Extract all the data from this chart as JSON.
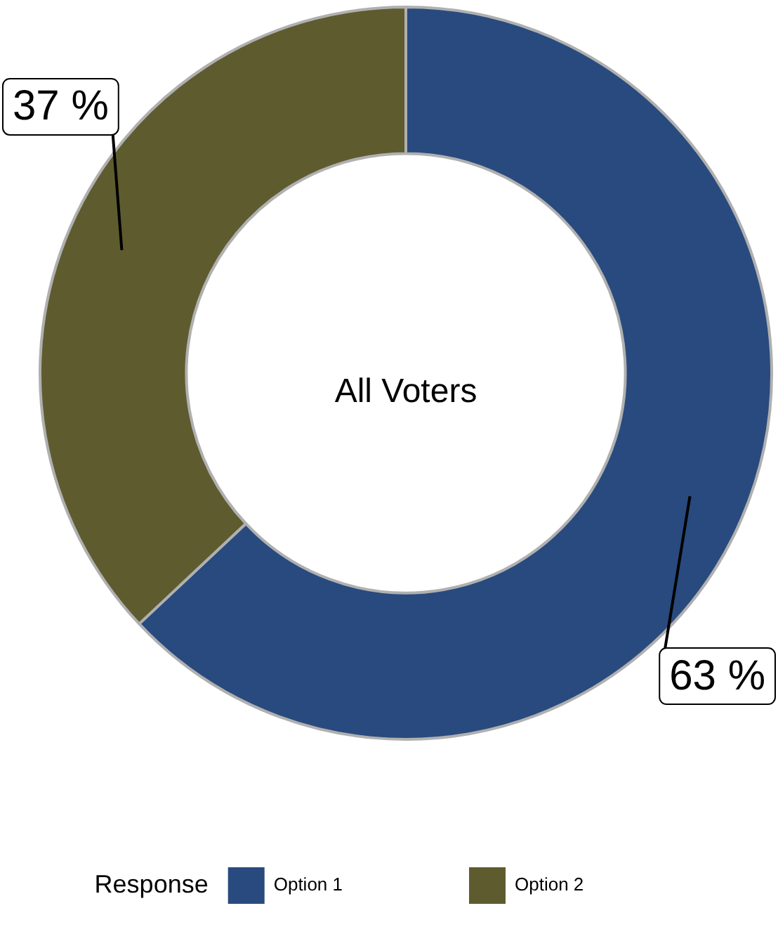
{
  "chart_data": {
    "type": "donut",
    "title": "All Voters",
    "legend_title": "Response",
    "legend": "bottom",
    "categories": [
      "Option 1",
      "Option 2"
    ],
    "values": [
      63,
      37
    ],
    "colors": [
      "#284a7e",
      "#5e5b2f"
    ],
    "value_labels": [
      "63 %",
      "37 %"
    ]
  }
}
